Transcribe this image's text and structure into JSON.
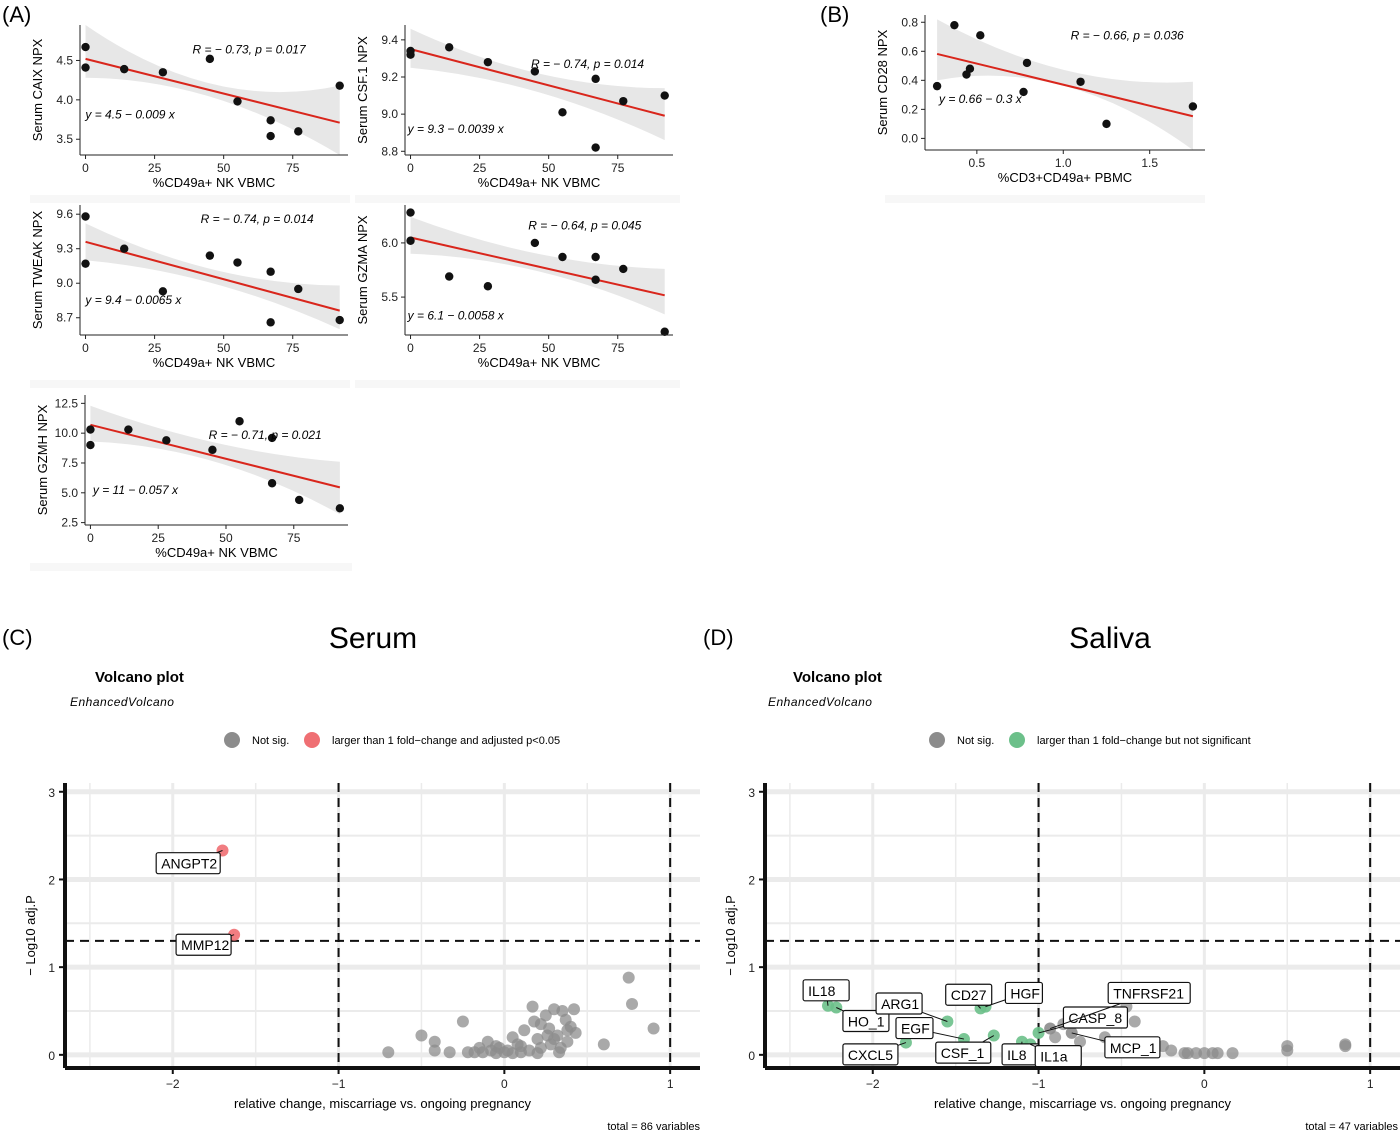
{
  "panel_letters": [
    "(A)",
    "(B)",
    "(C)",
    "(D)"
  ],
  "colors": {
    "point": "#111111",
    "fit_line": "#d9261c",
    "ci_band": "#e7e7e7",
    "sig_red": "#ef6f73",
    "nonsig_grey": "#8c8c8c",
    "fc_green": "#6cc08a",
    "grid": "#ebebeb"
  },
  "chart_data": [
    {
      "id": "A1",
      "type": "scatter",
      "xlabel": "%CD49a+ NK VBMC",
      "ylabel": "Serum CAIX NPX",
      "xlim": [
        -2,
        95
      ],
      "ylim": [
        3.3,
        4.95
      ],
      "xticks": [
        0,
        25,
        50,
        75
      ],
      "yticks": [
        3.5,
        4.0,
        4.5
      ],
      "ytick_labels": [
        "3.5",
        "4.0",
        "4.5"
      ],
      "x": [
        0,
        0,
        14,
        28,
        45,
        55,
        67,
        67,
        77,
        92
      ],
      "y": [
        4.67,
        4.41,
        4.39,
        4.35,
        4.52,
        3.98,
        3.74,
        3.54,
        3.6,
        4.18
      ],
      "fit": {
        "intercept": 4.52,
        "slope": -0.0088
      },
      "ci": {
        "at_min": [
          4.28,
          4.95
        ],
        "at_center": [
          4.03,
          4.2
        ],
        "at_max": [
          3.3,
          4.18
        ]
      },
      "r_text": "R = − 0.73, p = 0.017",
      "eq_text": "y = 4.5 − 0.009 x"
    },
    {
      "id": "A2",
      "type": "scatter",
      "xlabel": "%CD49a+ NK VBMC",
      "ylabel": "Serum CSF.1 NPX",
      "xlim": [
        -2,
        95
      ],
      "ylim": [
        8.78,
        9.48
      ],
      "xticks": [
        0,
        25,
        50,
        75
      ],
      "yticks": [
        8.8,
        9.0,
        9.2,
        9.4
      ],
      "ytick_labels": [
        "8.8",
        "9.0",
        "9.2",
        "9.4"
      ],
      "x": [
        0,
        0,
        14,
        28,
        45,
        55,
        67,
        67,
        77,
        92
      ],
      "y": [
        9.34,
        9.32,
        9.36,
        9.28,
        9.23,
        9.01,
        9.19,
        8.82,
        9.07,
        9.1
      ],
      "fit": {
        "intercept": 9.35,
        "slope": -0.0039
      },
      "ci": {
        "at_min": [
          9.25,
          9.46
        ],
        "at_center": [
          9.12,
          9.22
        ],
        "at_max": [
          8.86,
          9.14
        ]
      },
      "r_text": "R = − 0.74, p = 0.014",
      "eq_text": "y = 9.3 − 0.0039 x"
    },
    {
      "id": "A3",
      "type": "scatter",
      "xlabel": "%CD49a+ NK VBMC",
      "ylabel": "Serum TWEAK NPX",
      "xlim": [
        -2,
        95
      ],
      "ylim": [
        8.55,
        9.68
      ],
      "xticks": [
        0,
        25,
        50,
        75
      ],
      "yticks": [
        8.7,
        9.0,
        9.3,
        9.6
      ],
      "ytick_labels": [
        "8.7",
        "9.0",
        "9.3",
        "9.6"
      ],
      "x": [
        0,
        0,
        14,
        28,
        45,
        55,
        67,
        67,
        77,
        92
      ],
      "y": [
        9.58,
        9.17,
        9.3,
        8.93,
        9.24,
        9.18,
        9.1,
        8.66,
        8.95,
        8.68
      ],
      "fit": {
        "intercept": 9.36,
        "slope": -0.0065
      },
      "ci": {
        "at_min": [
          9.2,
          9.52
        ],
        "at_center": [
          9.0,
          9.12
        ],
        "at_max": [
          8.6,
          8.98
        ]
      },
      "r_text": "R = − 0.74, p = 0.014",
      "eq_text": "y = 9.4 − 0.0065 x"
    },
    {
      "id": "A4",
      "type": "scatter",
      "xlabel": "%CD49a+ NK VBMC",
      "ylabel": "Serum GZMA NPX",
      "xlim": [
        -2,
        95
      ],
      "ylim": [
        5.15,
        6.35
      ],
      "xticks": [
        0,
        25,
        50,
        75
      ],
      "yticks": [
        5.5,
        6.0
      ],
      "ytick_labels": [
        "5.5",
        "6.0"
      ],
      "x": [
        0,
        0,
        14,
        28,
        45,
        55,
        67,
        67,
        77,
        92
      ],
      "y": [
        6.28,
        6.02,
        5.69,
        5.6,
        6.0,
        5.87,
        5.87,
        5.66,
        5.76,
        5.18
      ],
      "fit": {
        "intercept": 6.05,
        "slope": -0.0058
      },
      "ci": {
        "at_min": [
          5.9,
          6.24
        ],
        "at_center": [
          5.74,
          5.9
        ],
        "at_max": [
          5.34,
          5.76
        ]
      },
      "r_text": "R = − 0.64, p = 0.045",
      "eq_text": "y = 6.1 − 0.0058 x"
    },
    {
      "id": "A5",
      "type": "scatter",
      "xlabel": "%CD49a+ NK VBMC",
      "ylabel": "Serum GZMH NPX",
      "xlim": [
        -2,
        95
      ],
      "ylim": [
        2.3,
        13.2
      ],
      "xticks": [
        0,
        25,
        50,
        75
      ],
      "yticks": [
        2.5,
        5.0,
        7.5,
        10.0,
        12.5
      ],
      "ytick_labels": [
        "2.5",
        "5.0",
        "7.5",
        "10.0",
        "12.5"
      ],
      "x": [
        0,
        0,
        14,
        28,
        45,
        55,
        67,
        67,
        77,
        92
      ],
      "y": [
        10.3,
        9.0,
        10.3,
        9.4,
        8.6,
        11.0,
        9.6,
        5.8,
        4.4,
        3.7
      ],
      "fit": {
        "intercept": 10.7,
        "slope": -0.057
      },
      "ci": {
        "at_min": [
          9.3,
          12.3
        ],
        "at_center": [
          7.6,
          9.2
        ],
        "at_max": [
          3.2,
          7.6
        ]
      },
      "r_text": "R = − 0.71, p = 0.021",
      "eq_text": "y = 11 − 0.057 x"
    },
    {
      "id": "B",
      "type": "scatter",
      "xlabel": "%CD3+CD49a+ PBMC",
      "ylabel": "Serum CD28 NPX",
      "xlim": [
        0.2,
        1.82
      ],
      "ylim": [
        -0.08,
        0.85
      ],
      "xticks": [
        0.5,
        1.0,
        1.5
      ],
      "yticks": [
        0.0,
        0.2,
        0.4,
        0.6,
        0.8
      ],
      "xtick_labels": [
        "0.5",
        "1.0",
        "1.5"
      ],
      "ytick_labels": [
        "0.0",
        "0.2",
        "0.4",
        "0.6",
        "0.8"
      ],
      "x": [
        0.27,
        0.37,
        0.44,
        0.46,
        0.52,
        0.77,
        0.79,
        1.1,
        1.25,
        1.75
      ],
      "y": [
        0.36,
        0.78,
        0.44,
        0.48,
        0.71,
        0.32,
        0.52,
        0.39,
        0.1,
        0.22
      ],
      "fit": {
        "intercept": 0.66,
        "slope": -0.29
      },
      "ci": {
        "at_min": [
          0.4,
          0.82
        ],
        "at_center": [
          0.36,
          0.47
        ],
        "at_max": [
          -0.08,
          0.39
        ]
      },
      "r_text": "R = − 0.66, p = 0.036",
      "eq_text": "y = 0.66 − 0.3 x"
    },
    {
      "id": "C",
      "type": "scatter",
      "subtype": "volcano",
      "big_title": "Serum",
      "title": "Volcano plot",
      "subtitle": "EnhancedVolcano",
      "xlabel": "relative change, miscarriage vs. ongoing pregnancy",
      "ylabel": "− Log10 adj.P",
      "xlim": [
        -2.65,
        1.18
      ],
      "ylim": [
        -0.15,
        3.1
      ],
      "xticks": [
        -2,
        -1,
        0,
        1
      ],
      "yticks": [
        0,
        1,
        2,
        3
      ],
      "xtick_labels": [
        "−2",
        "−1",
        "0",
        "1"
      ],
      "ytick_labels": [
        "0",
        "1",
        "2",
        "3"
      ],
      "vlines": [
        -1,
        1
      ],
      "hline": 1.3,
      "legend": [
        {
          "label": "Not sig.",
          "color": "#8c8c8c"
        },
        {
          "label": "larger than 1 fold−change and adjusted p<0.05",
          "color": "#ef6f73"
        }
      ],
      "caption": "total = 86 variables",
      "labeled_points": [
        {
          "label": "ANGPT2",
          "x": -1.7,
          "y": 2.33,
          "color": "#ef6f73"
        },
        {
          "label": "MMP12",
          "x": -1.63,
          "y": 1.37,
          "color": "#ef6f73"
        }
      ],
      "points": [
        [
          -0.7,
          0.03
        ],
        [
          -0.5,
          0.22
        ],
        [
          -0.42,
          0.15
        ],
        [
          -0.42,
          0.05
        ],
        [
          -0.25,
          0.38
        ],
        [
          -0.33,
          0.03
        ],
        [
          -0.22,
          0.03
        ],
        [
          -0.15,
          0.08
        ],
        [
          -0.13,
          0.03
        ],
        [
          -0.1,
          0.15
        ],
        [
          -0.08,
          0.05
        ],
        [
          -0.05,
          0.02
        ],
        [
          -0.03,
          0.08
        ],
        [
          0.0,
          0.03
        ],
        [
          0.02,
          0.05
        ],
        [
          0.05,
          0.02
        ],
        [
          0.08,
          0.12
        ],
        [
          0.1,
          0.03
        ],
        [
          0.12,
          0.28
        ],
        [
          0.15,
          0.05
        ],
        [
          0.17,
          0.55
        ],
        [
          0.18,
          0.38
        ],
        [
          0.2,
          0.18
        ],
        [
          0.22,
          0.08
        ],
        [
          0.25,
          0.45
        ],
        [
          0.27,
          0.3
        ],
        [
          0.28,
          0.12
        ],
        [
          0.3,
          0.52
        ],
        [
          0.32,
          0.22
        ],
        [
          0.33,
          0.03
        ],
        [
          0.35,
          0.5
        ],
        [
          0.37,
          0.4
        ],
        [
          0.38,
          0.15
        ],
        [
          0.4,
          0.32
        ],
        [
          0.42,
          0.52
        ],
        [
          0.43,
          0.25
        ],
        [
          0.2,
          0.02
        ],
        [
          0.1,
          0.1
        ],
        [
          0.05,
          0.2
        ],
        [
          -0.05,
          0.1
        ],
        [
          0.26,
          0.22
        ],
        [
          0.34,
          0.08
        ],
        [
          0.6,
          0.12
        ],
        [
          0.75,
          0.88
        ],
        [
          0.77,
          0.58
        ],
        [
          0.9,
          0.3
        ],
        [
          -0.18,
          0.03
        ],
        [
          0.22,
          0.35
        ],
        [
          0.3,
          0.18
        ],
        [
          0.38,
          0.28
        ]
      ]
    },
    {
      "id": "D",
      "type": "scatter",
      "subtype": "volcano",
      "big_title": "Saliva",
      "title": "Volcano plot",
      "subtitle": "EnhancedVolcano",
      "xlabel": "relative change, miscarriage vs. ongoing pregnancy",
      "ylabel": "− Log10 adj.P",
      "xlim": [
        -2.65,
        1.18
      ],
      "ylim": [
        -0.15,
        3.1
      ],
      "xticks": [
        -2,
        -1,
        0,
        1
      ],
      "yticks": [
        0,
        1,
        2,
        3
      ],
      "xtick_labels": [
        "−2",
        "−1",
        "0",
        "1"
      ],
      "ytick_labels": [
        "0",
        "1",
        "2",
        "3"
      ],
      "vlines": [
        -1,
        1
      ],
      "hline": 1.3,
      "legend": [
        {
          "label": "Not sig.",
          "color": "#8c8c8c"
        },
        {
          "label": "larger than 1 fold−change but not significant",
          "color": "#6cc08a"
        }
      ],
      "caption": "total = 47 variables",
      "labeled_points": [
        {
          "label": "IL18",
          "x": -2.27,
          "y": 0.56,
          "color": "#6cc08a"
        },
        {
          "label": "HO_1",
          "x": -2.22,
          "y": 0.54,
          "color": "#6cc08a"
        },
        {
          "label": "ARG1",
          "x": -1.55,
          "y": 0.38,
          "color": "#6cc08a"
        },
        {
          "label": "EGF",
          "x": -1.45,
          "y": 0.18,
          "color": "#6cc08a"
        },
        {
          "label": "CXCL5",
          "x": -1.8,
          "y": 0.14,
          "color": "#6cc08a"
        },
        {
          "label": "CD27",
          "x": -1.35,
          "y": 0.53,
          "color": "#6cc08a"
        },
        {
          "label": "HGF",
          "x": -1.32,
          "y": 0.55,
          "color": "#6cc08a"
        },
        {
          "label": "CSF_1",
          "x": -1.27,
          "y": 0.22,
          "color": "#6cc08a"
        },
        {
          "label": "IL8",
          "x": -1.1,
          "y": 0.15,
          "color": "#6cc08a"
        },
        {
          "label": "CASP_8",
          "x": -1.0,
          "y": 0.25,
          "color": "#6cc08a"
        },
        {
          "label": "IL1a",
          "x": -1.05,
          "y": 0.12,
          "color": "#6cc08a"
        },
        {
          "label": "TNFRSF21",
          "x": -0.93,
          "y": 0.3,
          "color": "#8c8c8c"
        },
        {
          "label": "MCP_1",
          "x": -0.8,
          "y": 0.25,
          "color": "#8c8c8c"
        }
      ],
      "points": [
        [
          -0.65,
          0.45
        ],
        [
          -0.47,
          0.55
        ],
        [
          -0.42,
          0.38
        ],
        [
          -0.6,
          0.2
        ],
        [
          -0.38,
          0.08
        ],
        [
          -0.25,
          0.1
        ],
        [
          -0.2,
          0.05
        ],
        [
          -0.12,
          0.02
        ],
        [
          -0.1,
          0.02
        ],
        [
          -0.05,
          0.02
        ],
        [
          0.0,
          0.02
        ],
        [
          0.05,
          0.02
        ],
        [
          0.08,
          0.02
        ],
        [
          0.17,
          0.02
        ],
        [
          0.5,
          0.1
        ],
        [
          0.5,
          0.05
        ],
        [
          0.85,
          0.12
        ],
        [
          0.85,
          0.1
        ],
        [
          -0.9,
          0.2
        ],
        [
          -0.75,
          0.15
        ],
        [
          -0.85,
          0.35
        ]
      ]
    }
  ]
}
